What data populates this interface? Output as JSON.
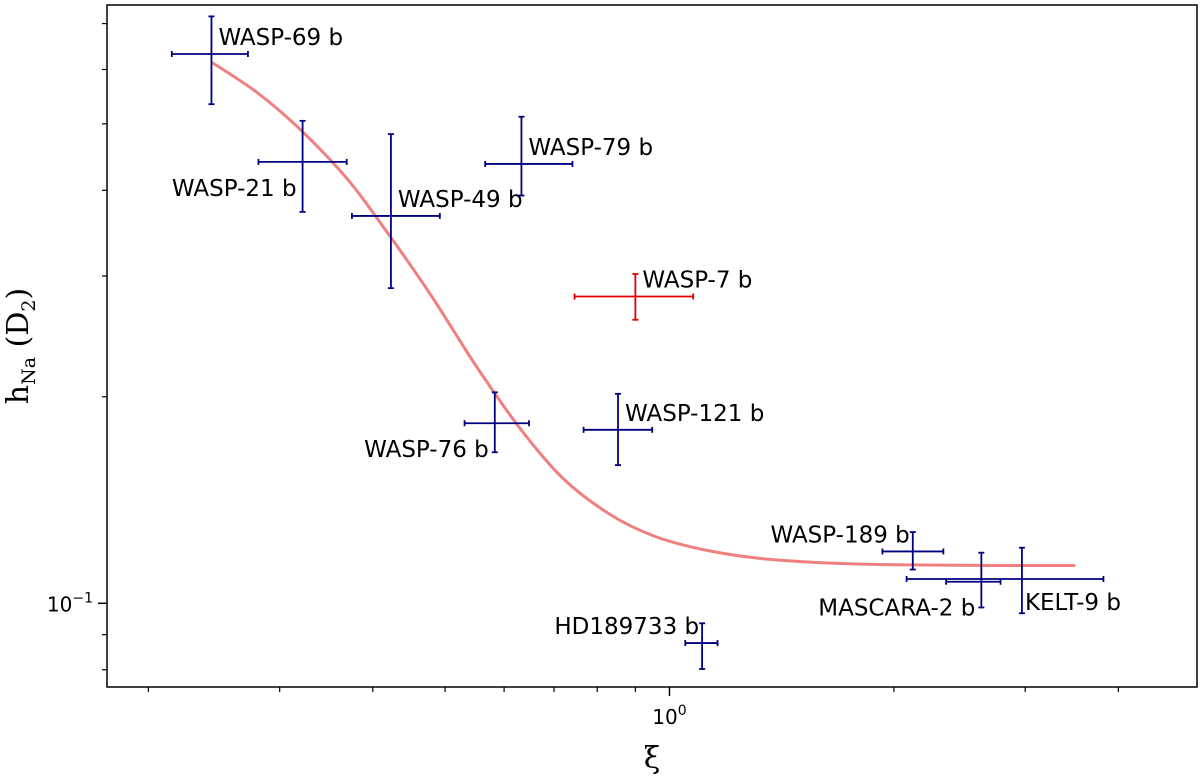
{
  "chart_data": {
    "type": "scatter",
    "title": "",
    "xlabel": "ξ",
    "ylabel": "h",
    "ylabel_sub": "Na",
    "ylabel_tail": " (D",
    "ylabel_tail_sub": "2",
    "ylabel_close": ")",
    "xscale": "log",
    "yscale": "log",
    "xlim": [
      0.176,
      5.1
    ],
    "ylim": [
      0.0755,
      0.745
    ],
    "grid": false,
    "x_major_ticks": [
      {
        "value": 1.0,
        "base": "10",
        "exp": "0"
      }
    ],
    "y_major_ticks": [
      {
        "value": 0.1,
        "base": "10",
        "exp": "−1"
      }
    ],
    "x_minor_ticks": [
      0.2,
      0.3,
      0.4,
      0.5,
      0.6,
      0.7,
      0.8,
      0.9,
      2,
      3,
      4
    ],
    "y_minor_ticks": [
      0.08,
      0.09,
      0.2,
      0.3,
      0.4,
      0.5,
      0.6,
      0.7
    ],
    "points": [
      {
        "name": "WASP-69 b",
        "x": 0.243,
        "x_lo": 0.215,
        "x_hi": 0.272,
        "y": 0.632,
        "y_lo": 0.534,
        "y_hi": 0.717,
        "color": "#000080",
        "label_pos": "upper-right"
      },
      {
        "name": "WASP-21 b",
        "x": 0.322,
        "x_lo": 0.281,
        "x_hi": 0.369,
        "y": 0.44,
        "y_lo": 0.372,
        "y_hi": 0.505,
        "color": "#000080",
        "label_pos": "lower-left"
      },
      {
        "name": "WASP-49 b",
        "x": 0.423,
        "x_lo": 0.375,
        "x_hi": 0.492,
        "y": 0.367,
        "y_lo": 0.288,
        "y_hi": 0.483,
        "color": "#000080",
        "label_pos": "upper-right"
      },
      {
        "name": "WASP-79 b",
        "x": 0.633,
        "x_lo": 0.566,
        "x_hi": 0.741,
        "y": 0.437,
        "y_lo": 0.393,
        "y_hi": 0.512,
        "color": "#000080",
        "label_pos": "upper-right"
      },
      {
        "name": "WASP-7 b",
        "x": 0.9,
        "x_lo": 0.746,
        "x_hi": 1.076,
        "y": 0.28,
        "y_lo": 0.259,
        "y_hi": 0.302,
        "color": "#e00000",
        "label_pos": "upper-right"
      },
      {
        "name": "WASP-76 b",
        "x": 0.583,
        "x_lo": 0.531,
        "x_hi": 0.648,
        "y": 0.183,
        "y_lo": 0.166,
        "y_hi": 0.203,
        "color": "#000080",
        "label_pos": "lower-left"
      },
      {
        "name": "WASP-121 b",
        "x": 0.853,
        "x_lo": 0.767,
        "x_hi": 0.948,
        "y": 0.179,
        "y_lo": 0.159,
        "y_hi": 0.202,
        "color": "#000080",
        "label_pos": "upper-right"
      },
      {
        "name": "WASP-189 b",
        "x": 2.12,
        "x_lo": 1.93,
        "x_hi": 2.33,
        "y": 0.119,
        "y_lo": 0.112,
        "y_hi": 0.127,
        "color": "#000080",
        "label_pos": "upper-left"
      },
      {
        "name": "MASCARA-2 b",
        "x": 2.62,
        "x_lo": 2.35,
        "x_hi": 2.78,
        "y": 0.1075,
        "y_lo": 0.0986,
        "y_hi": 0.1185,
        "color": "#000080",
        "label_pos": "lower-left"
      },
      {
        "name": "KELT-9 b",
        "x": 2.97,
        "x_lo": 2.08,
        "x_hi": 3.82,
        "y": 0.1085,
        "y_lo": 0.0967,
        "y_hi": 0.1205,
        "color": "#000080",
        "label_pos": "lower-right"
      },
      {
        "name": "HD189733 b",
        "x": 1.106,
        "x_lo": 1.05,
        "x_hi": 1.16,
        "y": 0.0875,
        "y_lo": 0.0802,
        "y_hi": 0.0935,
        "color": "#000080",
        "label_pos": "upper-left"
      }
    ],
    "fit_curve": {
      "color": "#f08080",
      "x": [
        0.243,
        0.28,
        0.32,
        0.37,
        0.42,
        0.48,
        0.55,
        0.63,
        0.72,
        0.83,
        0.95,
        1.1,
        1.3,
        1.55,
        1.85,
        2.2,
        2.7,
        3.5
      ],
      "y": [
        0.615,
        0.555,
        0.49,
        0.415,
        0.345,
        0.28,
        0.222,
        0.18,
        0.152,
        0.135,
        0.1255,
        0.12,
        0.1165,
        0.1148,
        0.114,
        0.1137,
        0.1135,
        0.1135
      ]
    }
  }
}
